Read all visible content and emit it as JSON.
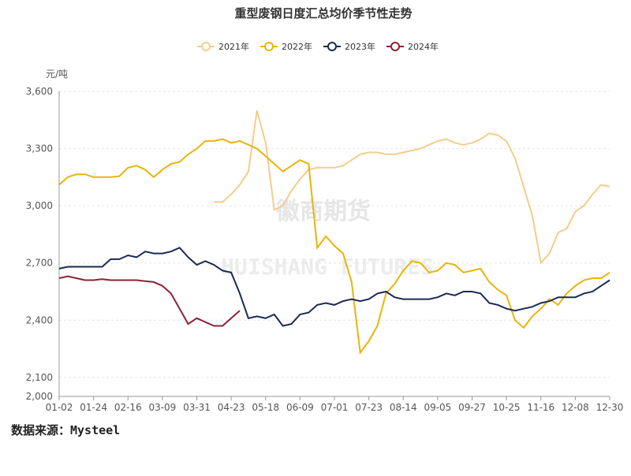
{
  "chart_data": {
    "type": "line",
    "title": "重型废钢日度汇总均价季节性走势",
    "y_unit": "元/吨",
    "source": "数据来源：Mysteel",
    "watermark": [
      "徽商期货",
      "HUISHANG FUTURES"
    ],
    "categories": [
      "01-02",
      null,
      null,
      null,
      "01-24",
      null,
      null,
      null,
      "02-16",
      null,
      null,
      null,
      "03-09",
      null,
      null,
      null,
      "03-31",
      null,
      null,
      null,
      "04-23",
      null,
      null,
      null,
      "05-18",
      null,
      null,
      null,
      "06-09",
      null,
      null,
      null,
      "07-01",
      null,
      null,
      null,
      "07-23",
      null,
      null,
      null,
      "08-14",
      null,
      null,
      null,
      "09-05",
      null,
      null,
      null,
      "09-27",
      null,
      null,
      null,
      "10-25",
      null,
      null,
      null,
      "11-16",
      null,
      null,
      null,
      "12-08",
      null,
      null,
      null,
      "12-30"
    ],
    "ylim": [
      2000,
      3600
    ],
    "yticks": [
      {
        "value": 2000,
        "label": "2,000"
      },
      {
        "value": 2100,
        "label": "2,100"
      },
      {
        "value": 2400,
        "label": "2,400"
      },
      {
        "value": 2700,
        "label": "2,700"
      },
      {
        "value": 3000,
        "label": "3,000"
      },
      {
        "value": 3300,
        "label": "3,300"
      },
      {
        "value": 3600,
        "label": "3,600"
      }
    ],
    "grid": true,
    "legend": "top",
    "series": [
      {
        "name": "2021年",
        "color": "#f5cc8c",
        "values": [
          null,
          null,
          null,
          null,
          null,
          null,
          null,
          null,
          null,
          null,
          null,
          null,
          null,
          null,
          null,
          null,
          null,
          null,
          3020,
          3020,
          3060,
          3110,
          3180,
          3500,
          3330,
          2980,
          3000,
          3080,
          3140,
          3190,
          3200,
          3200,
          3200,
          3210,
          3240,
          3270,
          3280,
          3280,
          3270,
          3270,
          3280,
          3290,
          3300,
          3320,
          3340,
          3350,
          3330,
          3320,
          3330,
          3350,
          3380,
          3370,
          3340,
          3250,
          3100,
          2950,
          2700,
          2750,
          2860,
          2880,
          2970,
          3000,
          3060,
          3110,
          3100
        ]
      },
      {
        "name": "2022年",
        "color": "#e8b40c",
        "values": [
          3110,
          3150,
          3165,
          3165,
          3150,
          3150,
          3150,
          3155,
          3200,
          3210,
          3190,
          3150,
          3190,
          3220,
          3230,
          3270,
          3300,
          3340,
          3340,
          3350,
          3330,
          3340,
          3320,
          3300,
          3260,
          3220,
          3180,
          3210,
          3240,
          3220,
          2780,
          2840,
          2790,
          2750,
          2600,
          2230,
          2290,
          2370,
          2540,
          2590,
          2660,
          2710,
          2700,
          2650,
          2660,
          2700,
          2690,
          2650,
          2660,
          2670,
          2600,
          2560,
          2530,
          2400,
          2360,
          2420,
          2460,
          2510,
          2480,
          2540,
          2580,
          2610,
          2620,
          2620,
          2650
        ]
      },
      {
        "name": "2023年",
        "color": "#1b2a52",
        "values": [
          2670,
          2680,
          2680,
          2680,
          2680,
          2680,
          2720,
          2720,
          2740,
          2730,
          2760,
          2750,
          2750,
          2760,
          2780,
          2730,
          2690,
          2710,
          2690,
          2660,
          2650,
          2540,
          2410,
          2420,
          2410,
          2430,
          2370,
          2380,
          2430,
          2440,
          2480,
          2490,
          2480,
          2500,
          2510,
          2500,
          2510,
          2540,
          2550,
          2520,
          2510,
          2510,
          2510,
          2510,
          2520,
          2540,
          2530,
          2550,
          2550,
          2540,
          2490,
          2480,
          2460,
          2450,
          2460,
          2470,
          2490,
          2500,
          2520,
          2520,
          2520,
          2540,
          2550,
          2580,
          2610
        ]
      },
      {
        "name": "2024年",
        "color": "#8b2236",
        "values": [
          2620,
          2630,
          2620,
          2610,
          2610,
          2615,
          2610,
          2610,
          2610,
          2610,
          2605,
          2600,
          2580,
          2540,
          2460,
          2380,
          2410,
          2390,
          2370,
          2370,
          2410,
          2450,
          null,
          null,
          null,
          null,
          null,
          null,
          null,
          null,
          null,
          null,
          null,
          null,
          null,
          null,
          null,
          null,
          null,
          null,
          null,
          null,
          null,
          null,
          null,
          null,
          null,
          null,
          null,
          null,
          null,
          null,
          null,
          null,
          null,
          null,
          null,
          null,
          null,
          null,
          null,
          null,
          null,
          null,
          null
        ]
      }
    ]
  }
}
